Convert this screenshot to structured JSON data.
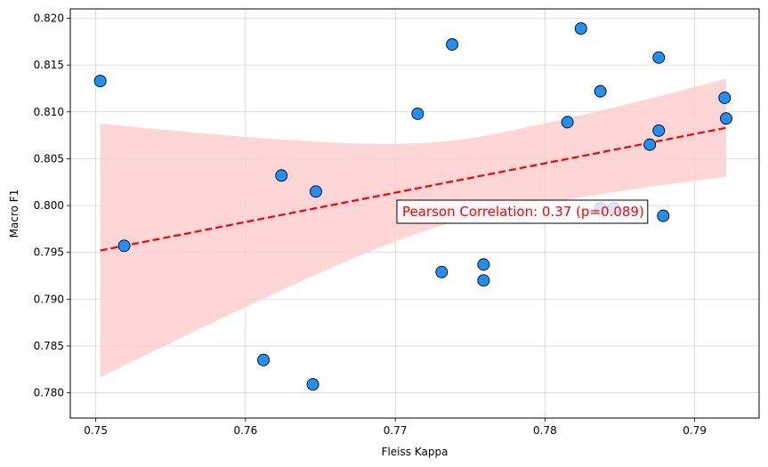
{
  "chart_data": {
    "type": "scatter",
    "xlabel": "Fleiss Kappa",
    "ylabel": "Macro F1",
    "xlim": [
      0.7483,
      0.7943
    ],
    "ylim": [
      0.7773,
      0.821
    ],
    "xticks": [
      "0.75",
      "0.76",
      "0.77",
      "0.78",
      "0.79"
    ],
    "xtick_values": [
      0.75,
      0.76,
      0.77,
      0.78,
      0.79
    ],
    "yticks": [
      "0.780",
      "0.785",
      "0.790",
      "0.795",
      "0.800",
      "0.805",
      "0.810",
      "0.815",
      "0.820"
    ],
    "ytick_values": [
      0.78,
      0.785,
      0.79,
      0.795,
      0.8,
      0.805,
      0.81,
      0.815,
      0.82
    ],
    "grid": true,
    "points": [
      {
        "x": 0.7503,
        "y": 0.8133
      },
      {
        "x": 0.7519,
        "y": 0.7957
      },
      {
        "x": 0.7612,
        "y": 0.7835
      },
      {
        "x": 0.7624,
        "y": 0.8032
      },
      {
        "x": 0.7645,
        "y": 0.7809
      },
      {
        "x": 0.7647,
        "y": 0.8015
      },
      {
        "x": 0.7715,
        "y": 0.8098
      },
      {
        "x": 0.7731,
        "y": 0.7929
      },
      {
        "x": 0.7738,
        "y": 0.8172
      },
      {
        "x": 0.7759,
        "y": 0.7937
      },
      {
        "x": 0.7759,
        "y": 0.792
      },
      {
        "x": 0.7815,
        "y": 0.8089
      },
      {
        "x": 0.7824,
        "y": 0.8189
      },
      {
        "x": 0.7837,
        "y": 0.8122
      },
      {
        "x": 0.7837,
        "y": 0.7997
      },
      {
        "x": 0.7846,
        "y": 0.7997
      },
      {
        "x": 0.787,
        "y": 0.8065
      },
      {
        "x": 0.7876,
        "y": 0.8158
      },
      {
        "x": 0.7876,
        "y": 0.808
      },
      {
        "x": 0.7879,
        "y": 0.7989
      },
      {
        "x": 0.792,
        "y": 0.8115
      },
      {
        "x": 0.7921,
        "y": 0.8093
      }
    ],
    "regression_line": {
      "x": [
        0.7503,
        0.7921
      ],
      "y": [
        0.7952,
        0.8083
      ]
    },
    "confidence_band": {
      "x": [
        0.7503,
        0.7921
      ],
      "upper": [
        0.8064,
        0.8139
      ],
      "lower": [
        0.7793,
        0.8034
      ]
    },
    "annotation": "Pearson Correlation: 0.37 (p=0.089)",
    "colors": {
      "points": "#1e90ff",
      "point_edge": "#000000",
      "line": "#ff0000",
      "band": "#ffcccc",
      "annotation": "#ff0000"
    }
  }
}
